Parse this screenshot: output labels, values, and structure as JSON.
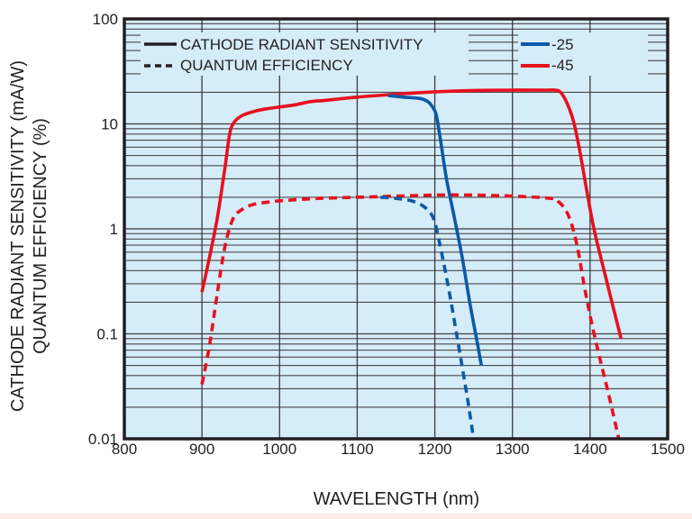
{
  "chart_data": {
    "type": "line",
    "title": "",
    "xlabel": "WAVELENGTH (nm)",
    "ylabel_lines": [
      "CATHODE RADIANT SENSITIVITY (mA/W)",
      "QUANTUM EFFICIENCY (%)"
    ],
    "xlim": [
      800,
      1500
    ],
    "ylim": [
      0.01,
      100
    ],
    "yscale": "log",
    "x_ticks": [
      800,
      900,
      1000,
      1100,
      1200,
      1300,
      1400,
      1500
    ],
    "x_tick_labels": [
      "800",
      "900",
      "1000",
      "1100",
      "1200",
      "1300",
      "1400",
      "1500"
    ],
    "y_ticks": [
      0.01,
      0.1,
      1,
      10,
      100
    ],
    "y_tick_labels": [
      "0.01",
      "0.1",
      "1",
      "10",
      "100"
    ],
    "grid": true,
    "background_color": "#d5ecf9",
    "legend": {
      "placement": "top",
      "style_entries": [
        {
          "label": "CATHODE RADIANT SENSITIVITY",
          "dash": "solid"
        },
        {
          "label": "QUANTUM EFFICIENCY",
          "dash": "dashed"
        }
      ],
      "color_entries": [
        {
          "label": "-25",
          "color": "#0a5aa8"
        },
        {
          "label": "-45",
          "color": "#e8101e"
        }
      ]
    },
    "series": [
      {
        "name": "-45 Cathode Radiant Sensitivity",
        "color": "#e8101e",
        "dash": "solid",
        "x": [
          900,
          910,
          920,
          930,
          935,
          940,
          950,
          965,
          980,
          1000,
          1020,
          1040,
          1060,
          1100,
          1150,
          1200,
          1250,
          1300,
          1340,
          1355,
          1362,
          1370,
          1378,
          1385,
          1395,
          1405,
          1420,
          1440
        ],
        "y": [
          0.25,
          0.55,
          1.3,
          4.0,
          7.5,
          10,
          11.8,
          13,
          13.8,
          14.5,
          15.2,
          16.3,
          16.8,
          18,
          19.2,
          20.2,
          20.8,
          21,
          21,
          21,
          20,
          16,
          11,
          6.5,
          2.5,
          1.0,
          0.35,
          0.09
        ]
      },
      {
        "name": "-25 Cathode Radiant Sensitivity",
        "color": "#0a5aa8",
        "dash": "solid",
        "x": [
          1140,
          1160,
          1180,
          1190,
          1197,
          1202,
          1208,
          1215,
          1225,
          1235,
          1245,
          1255,
          1260
        ],
        "y": [
          18.6,
          18.0,
          17.5,
          16.5,
          14.5,
          12,
          6.5,
          3.0,
          1.3,
          0.55,
          0.2,
          0.08,
          0.05
        ]
      },
      {
        "name": "-45 Quantum Efficiency",
        "color": "#e8101e",
        "dash": "dashed",
        "x": [
          900,
          910,
          920,
          930,
          940,
          950,
          965,
          985,
          1000,
          1050,
          1100,
          1150,
          1200,
          1250,
          1300,
          1350,
          1360,
          1370,
          1378,
          1385,
          1392,
          1400,
          1410,
          1420,
          1430,
          1437
        ],
        "y": [
          0.033,
          0.08,
          0.25,
          0.7,
          1.25,
          1.5,
          1.7,
          1.8,
          1.85,
          1.95,
          2.0,
          2.05,
          2.1,
          2.1,
          2.05,
          1.95,
          1.8,
          1.45,
          1.0,
          0.6,
          0.3,
          0.15,
          0.07,
          0.035,
          0.017,
          0.01
        ]
      },
      {
        "name": "-25 Quantum Efficiency",
        "color": "#0a5aa8",
        "dash": "dashed",
        "x": [
          1130,
          1150,
          1170,
          1185,
          1195,
          1200,
          1205,
          1212,
          1220,
          1228,
          1236,
          1243,
          1250
        ],
        "y": [
          2.0,
          1.95,
          1.85,
          1.65,
          1.4,
          1.15,
          0.8,
          0.45,
          0.22,
          0.1,
          0.045,
          0.022,
          0.01
        ]
      }
    ]
  }
}
